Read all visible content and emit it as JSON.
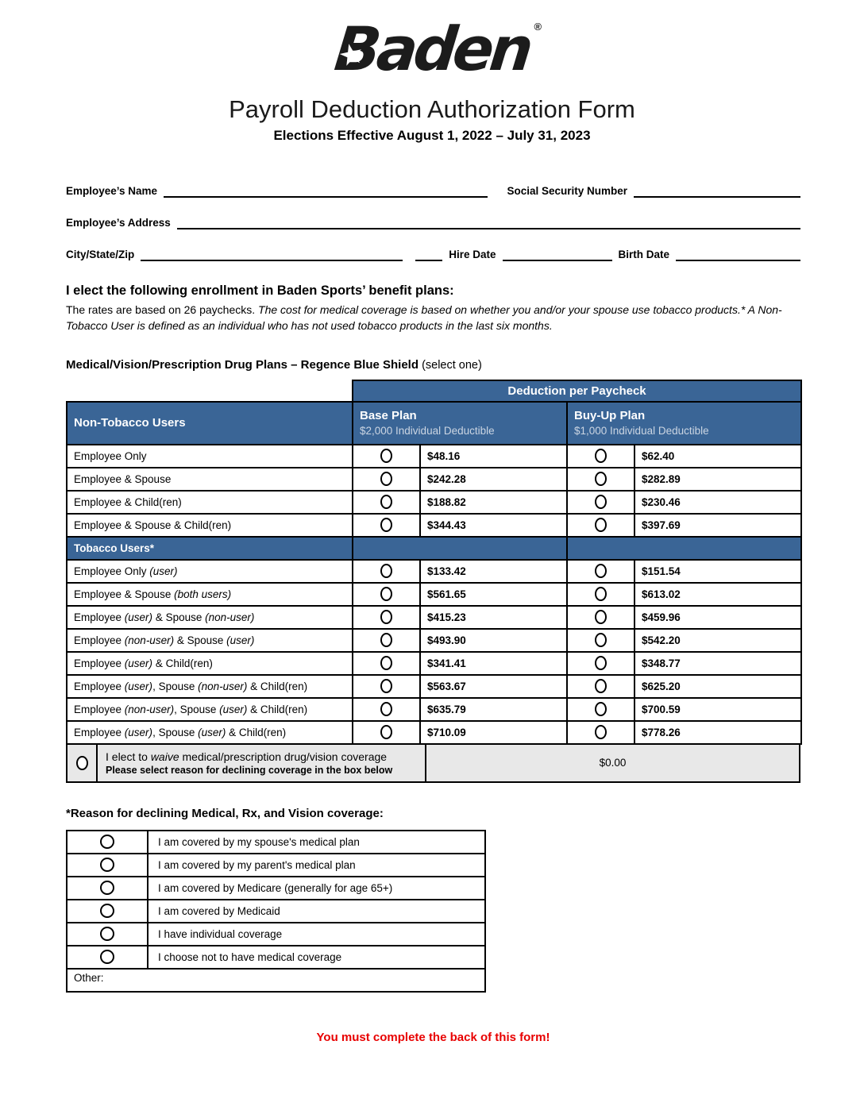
{
  "logo": {
    "brand": "Baden",
    "registered": "®",
    "star": "★"
  },
  "header": {
    "title": "Payroll Deduction Authorization Form",
    "subtitle": "Elections Effective August 1, 2022 – July 31, 2023"
  },
  "employee_fields": {
    "name_label": "Employee’s Name",
    "ssn_label": "Social Security Number",
    "address_label": "Employee’s Address",
    "city_label": "City/State/Zip",
    "hire_label": "Hire Date",
    "birth_label": "Birth Date"
  },
  "election": {
    "heading": "I elect the following enrollment in Baden Sports’ benefit plans:",
    "intro_regular": "The rates are based on 26 paychecks.",
    "intro_italic": "The cost for medical coverage is based on whether you and/or your spouse use tobacco products.*  A Non-Tobacco User is defined as an individual who has not used tobacco products in the last six months."
  },
  "plan_section": {
    "heading_bold": "Medical/Vision/Prescription Drug Plans – Regence Blue Shield",
    "heading_note": "(select one)"
  },
  "table": {
    "top_header": "Deduction per Paycheck",
    "non_tobacco_label": "Non-Tobacco Users",
    "base_plan": {
      "name": "Base Plan",
      "deductible": "$2,000 Individual Deductible"
    },
    "buyup_plan": {
      "name": "Buy-Up Plan",
      "deductible": "$1,000 Individual Deductible"
    },
    "non_tobacco_rows": [
      {
        "label": [
          {
            "text": "Employee Only",
            "italic": false
          }
        ],
        "base": "$48.16",
        "buyup": "$62.40"
      },
      {
        "label": [
          {
            "text": "Employee & Spouse",
            "italic": false
          }
        ],
        "base": "$242.28",
        "buyup": "$282.89"
      },
      {
        "label": [
          {
            "text": "Employee & Child(ren)",
            "italic": false
          }
        ],
        "base": "$188.82",
        "buyup": "$230.46"
      },
      {
        "label": [
          {
            "text": "Employee & Spouse & Child(ren)",
            "italic": false
          }
        ],
        "base": "$344.43",
        "buyup": "$397.69"
      }
    ],
    "tobacco_header": "Tobacco Users*",
    "tobacco_rows": [
      {
        "label": [
          {
            "text": "Employee Only ",
            "italic": false
          },
          {
            "text": "(user)",
            "italic": true
          }
        ],
        "base": "$133.42",
        "buyup": "$151.54"
      },
      {
        "label": [
          {
            "text": "Employee & Spouse ",
            "italic": false
          },
          {
            "text": "(both users)",
            "italic": true
          }
        ],
        "base": "$561.65",
        "buyup": "$613.02"
      },
      {
        "label": [
          {
            "text": "Employee ",
            "italic": false
          },
          {
            "text": "(user)",
            "italic": true
          },
          {
            "text": " & Spouse ",
            "italic": false
          },
          {
            "text": "(non-user)",
            "italic": true
          }
        ],
        "base": "$415.23",
        "buyup": "$459.96"
      },
      {
        "label": [
          {
            "text": "Employee ",
            "italic": false
          },
          {
            "text": "(non-user)",
            "italic": true
          },
          {
            "text": " & Spouse ",
            "italic": false
          },
          {
            "text": "(user)",
            "italic": true
          }
        ],
        "base": "$493.90",
        "buyup": "$542.20"
      },
      {
        "label": [
          {
            "text": "Employee ",
            "italic": false
          },
          {
            "text": "(user)",
            "italic": true
          },
          {
            "text": " & Child(ren)",
            "italic": false
          }
        ],
        "base": "$341.41",
        "buyup": "$348.77"
      },
      {
        "label": [
          {
            "text": "Employee ",
            "italic": false
          },
          {
            "text": "(user)",
            "italic": true
          },
          {
            "text": ", Spouse ",
            "italic": false
          },
          {
            "text": "(non-user)",
            "italic": true
          },
          {
            "text": " & Child(ren)",
            "italic": false
          }
        ],
        "base": "$563.67",
        "buyup": "$625.20"
      },
      {
        "label": [
          {
            "text": "Employee ",
            "italic": false
          },
          {
            "text": "(non-user)",
            "italic": true
          },
          {
            "text": ", Spouse ",
            "italic": false
          },
          {
            "text": "(user)",
            "italic": true
          },
          {
            "text": " & Child(ren)",
            "italic": false
          }
        ],
        "base": "$635.79",
        "buyup": "$700.59"
      },
      {
        "label": [
          {
            "text": "Employee ",
            "italic": false
          },
          {
            "text": "(user)",
            "italic": true
          },
          {
            "text": ", Spouse ",
            "italic": false
          },
          {
            "text": "(user)",
            "italic": true
          },
          {
            "text": " & Child(ren)",
            "italic": false
          }
        ],
        "base": "$710.09",
        "buyup": "$778.26"
      }
    ],
    "waive": {
      "line1_pre": "I elect to ",
      "line1_italic": "waive",
      "line1_post": " medical/prescription drug/vision coverage",
      "line2": "Please select reason for declining coverage in the box below",
      "amount": "$0.00"
    }
  },
  "decline": {
    "heading": "*Reason for declining Medical, Rx, and Vision coverage:",
    "reasons": [
      "I am covered by my spouse's medical plan",
      "I am covered by my parent's medical plan",
      "I am covered by Medicare (generally for age 65+)",
      "I am covered by Medicaid",
      "I have individual coverage",
      "I choose not to have medical coverage"
    ],
    "other_label": "Other:"
  },
  "footer": {
    "warning": "You must complete the back of this form!"
  },
  "colors": {
    "header_blue": "#3A6596",
    "header_subtext": "#CBD5E2",
    "waive_gray": "#E8E8E8",
    "warning_red": "#E80000"
  }
}
